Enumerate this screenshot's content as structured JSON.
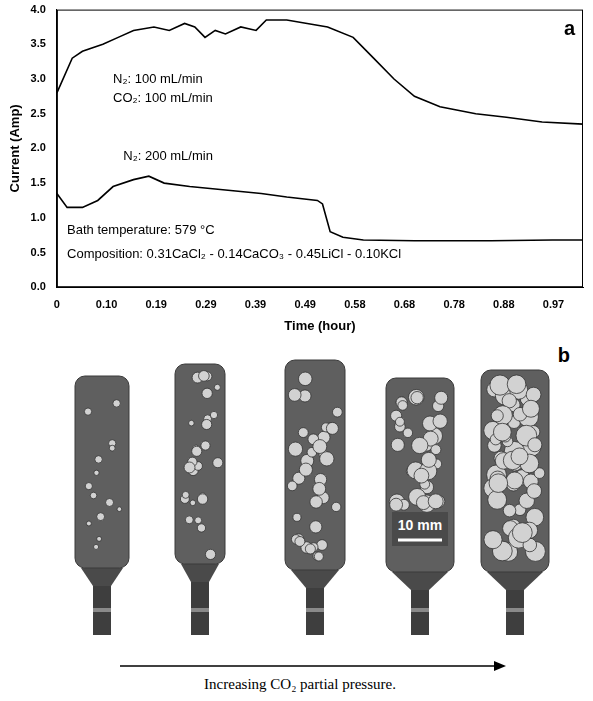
{
  "chart_data": {
    "type": "line",
    "panel_label": "a",
    "x_label": "Time (hour)",
    "y_label": "Current (Amp)",
    "xlim": [
      0,
      1.03
    ],
    "xticks": [
      0,
      {
        "value": 0.0972,
        "label": "0.10"
      },
      {
        "value": 0.1944,
        "label": "0.19"
      },
      {
        "value": 0.2917,
        "label": "0.29"
      },
      {
        "value": 0.3889,
        "label": "0.39"
      },
      {
        "value": 0.4861,
        "label": "0.49"
      },
      {
        "value": 0.5833,
        "label": "0.58"
      },
      {
        "value": 0.6806,
        "label": "0.68"
      },
      {
        "value": 0.7778,
        "label": "0.78"
      },
      {
        "value": 0.875,
        "label": "0.88"
      },
      {
        "value": 0.9722,
        "label": "0.97"
      }
    ],
    "ylim": [
      0,
      4
    ],
    "yticks": [
      {
        "value": 0,
        "label": "0.0"
      },
      0.5,
      {
        "value": 1,
        "label": "1.0"
      },
      1.5,
      {
        "value": 2,
        "label": "2.0"
      },
      2.5,
      {
        "value": 3,
        "label": "3.0"
      },
      3.5,
      {
        "value": 4,
        "label": "4.0"
      }
    ],
    "grid": false,
    "annotations": [
      "N₂: 100 mL/min",
      "CO₂: 100 mL/min",
      "N₂: 200 mL/min",
      "Bath temperature: 579 °C",
      "Composition: 0.31CaCl₂ - 0.14CaCO₃ - 0.45LiCl - 0.10KCl"
    ],
    "series": [
      {
        "color": "#000000",
        "line_style": "solid",
        "x": [
          0,
          0.03,
          0.05,
          0.09,
          0.12,
          0.15,
          0.19,
          0.22,
          0.25,
          0.27,
          0.29,
          0.31,
          0.33,
          0.36,
          0.39,
          0.41,
          0.45,
          0.49,
          0.53,
          0.58,
          0.62,
          0.66,
          0.7,
          0.75,
          0.82,
          0.88,
          0.95,
          1.03
        ],
        "values": [
          2.8,
          3.3,
          3.4,
          3.5,
          3.6,
          3.7,
          3.75,
          3.7,
          3.8,
          3.75,
          3.6,
          3.7,
          3.65,
          3.75,
          3.7,
          3.85,
          3.85,
          3.8,
          3.75,
          3.6,
          3.3,
          3.0,
          2.75,
          2.6,
          2.5,
          2.45,
          2.38,
          2.35
        ]
      },
      {
        "color": "#000000",
        "line_style": "solid",
        "x": [
          0,
          0.02,
          0.05,
          0.08,
          0.11,
          0.15,
          0.18,
          0.21,
          0.26,
          0.33,
          0.4,
          0.45,
          0.51,
          0.52,
          0.535,
          0.56,
          0.6,
          0.7,
          0.85,
          0.97,
          1.03
        ],
        "values": [
          1.35,
          1.15,
          1.15,
          1.25,
          1.45,
          1.55,
          1.6,
          1.5,
          1.45,
          1.4,
          1.35,
          1.3,
          1.25,
          1.2,
          0.8,
          0.72,
          0.68,
          0.67,
          0.67,
          0.68,
          0.68
        ]
      }
    ]
  },
  "panel_b": {
    "label": "b",
    "scale_bar": "10 mm",
    "caption": "Increasing CO₂ partial pressure."
  }
}
